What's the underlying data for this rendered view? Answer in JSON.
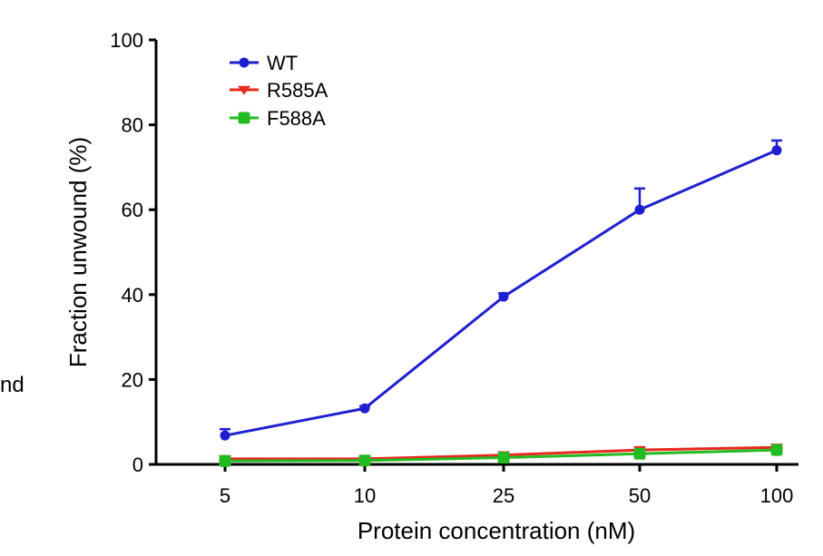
{
  "chart_data": {
    "type": "line",
    "title": "",
    "xlabel": "Protein concentration (nM)",
    "ylabel": "Fraction unwound (%)",
    "categories": [
      "5",
      "10",
      "25",
      "50",
      "100"
    ],
    "ylim": [
      0,
      100
    ],
    "yticks": [
      0,
      20,
      40,
      60,
      80,
      100
    ],
    "grid": false,
    "legend_position": "top-left",
    "series": [
      {
        "name": "WT",
        "color": "#1f1fd0",
        "marker": "circle",
        "values": [
          6.8,
          13.2,
          39.5,
          60.0,
          74.0
        ],
        "errors": [
          1.5,
          0.5,
          0.8,
          5.0,
          2.3
        ]
      },
      {
        "name": "R585A",
        "color": "#e8281e",
        "marker": "triangle-down",
        "values": [
          1.3,
          1.3,
          2.2,
          3.4,
          4.0
        ],
        "errors": [
          0.3,
          0.3,
          0.4,
          0.5,
          0.5
        ]
      },
      {
        "name": "F588A",
        "color": "#22bb22",
        "marker": "square",
        "values": [
          0.8,
          0.9,
          1.6,
          2.5,
          3.4
        ],
        "errors": [
          0.3,
          0.3,
          0.3,
          0.4,
          0.5
        ]
      }
    ]
  },
  "side_text": "nd"
}
